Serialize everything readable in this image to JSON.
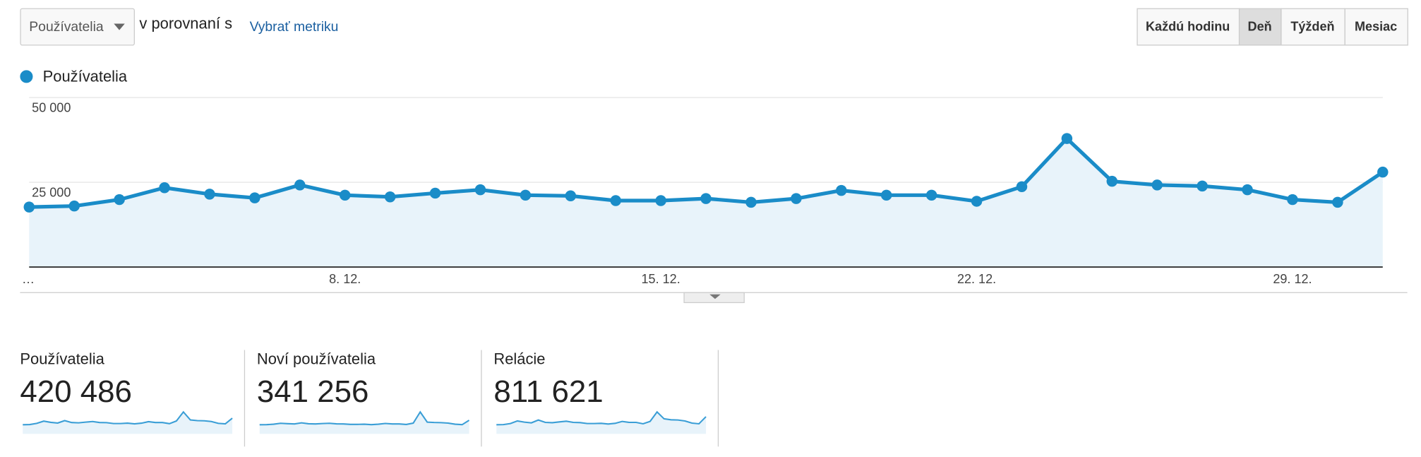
{
  "toolbar": {
    "metric_select": "Používatelia",
    "compare_text": "v porovnaní s",
    "choose_metric": "Vybrať metriku",
    "buttons": [
      "Každú hodinu",
      "Deň",
      "Týždeň",
      "Mesiac"
    ],
    "selected_button": 1
  },
  "chart_data": {
    "type": "line",
    "categories": [
      "…",
      null,
      null,
      null,
      null,
      null,
      null,
      "8. 12.",
      null,
      null,
      null,
      null,
      null,
      null,
      "15. 12.",
      null,
      null,
      null,
      null,
      null,
      null,
      "22. 12.",
      null,
      null,
      null,
      null,
      null,
      null,
      "29. 12.",
      null,
      null
    ],
    "series": [
      {
        "name": "Používatelia",
        "color": "#1a8cc8",
        "values": [
          17700,
          18000,
          19900,
          23400,
          21500,
          20400,
          24200,
          21200,
          20700,
          21800,
          22800,
          21200,
          21000,
          19600,
          19600,
          20200,
          19100,
          20200,
          22600,
          21200,
          21200,
          19400,
          23700,
          37900,
          25300,
          24200,
          23900,
          22800,
          19900,
          19100,
          28000
        ]
      }
    ],
    "ylim": [
      0,
      50000
    ],
    "yticks": [
      {
        "value": 25000,
        "label": "25 000"
      },
      {
        "value": 50000,
        "label": "50 000"
      }
    ],
    "grid": true,
    "area": true
  },
  "metrics": [
    {
      "name": "Používatelia",
      "value": "420 486"
    },
    {
      "name": "Noví používatelia",
      "value": "341 256",
      "sparkline": [
        8900,
        9000,
        9500,
        10500,
        10100,
        9800,
        11000,
        10000,
        9800,
        10200,
        10500,
        9900,
        9800,
        9300,
        9300,
        9500,
        9000,
        9500,
        10300,
        9800,
        9800,
        9200,
        10700,
        23000,
        11800,
        11400,
        11200,
        10700,
        9500,
        9000,
        13800
      ]
    },
    {
      "name": "Relácie",
      "value": "811 621",
      "sparkline": [
        35000,
        35300,
        37500,
        43000,
        40500,
        39000,
        45000,
        40000,
        39300,
        41000,
        42500,
        40000,
        39500,
        37500,
        37500,
        38000,
        36500,
        38000,
        42000,
        40000,
        40000,
        37000,
        42000,
        62000,
        47500,
        45500,
        45000,
        43000,
        38500,
        37000,
        52000
      ]
    }
  ]
}
